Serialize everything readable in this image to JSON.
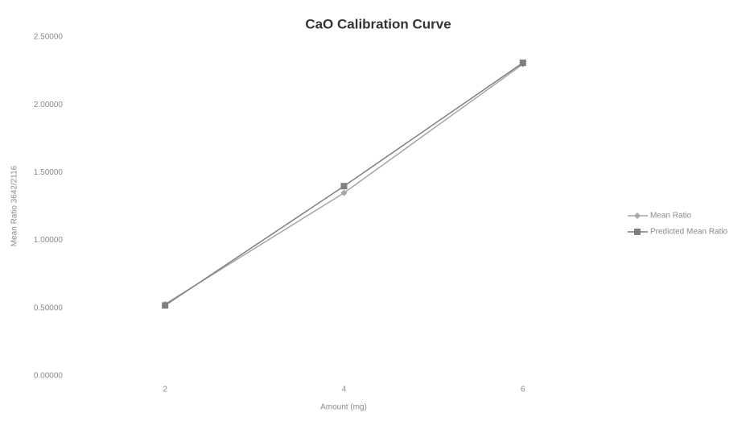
{
  "chart_data": {
    "type": "line",
    "title": "CaO Calibration Curve",
    "x_label": "Amount (mg)",
    "y_label": "Mean Ratio 3642/2116",
    "categories": [
      "2",
      "4",
      "6"
    ],
    "series": [
      {
        "name": "Mean Ratio",
        "color": "#a6a6a6",
        "marker": "diamond",
        "values": [
          0.53,
          1.35,
          2.3
        ]
      },
      {
        "name": "Predicted Mean Ratio",
        "color": "#7f7f7f",
        "marker": "square",
        "values": [
          0.52,
          1.4,
          2.31
        ]
      }
    ],
    "ylim": [
      0,
      2.5
    ],
    "yticks": [
      {
        "value": 0,
        "label": "0.00000"
      },
      {
        "value": 0.5,
        "label": "0.50000"
      },
      {
        "value": 1,
        "label": "1.00000"
      },
      {
        "value": 1.5,
        "label": "1.50000"
      },
      {
        "value": 2,
        "label": "2.00000"
      },
      {
        "value": 2.5,
        "label": "2.50000"
      }
    ],
    "grid": false,
    "legend": "right"
  }
}
